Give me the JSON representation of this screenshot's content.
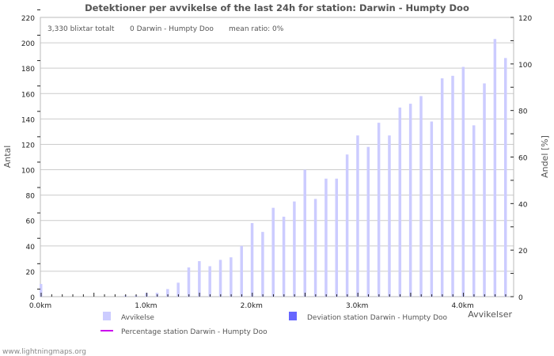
{
  "chart_data": {
    "type": "bar",
    "title": "Detektioner per avvikelse of the last 24h for station: Darwin - Humpty Doo",
    "stats": {
      "total": "3,330 blixtar totalt",
      "station": "0 Darwin - Humpty Doo",
      "mean_ratio": "mean ratio: 0%"
    },
    "xlabel": "Avvikelser",
    "ylabel": "Antal",
    "y2label": "Andel [%]",
    "ylim": [
      0,
      220
    ],
    "y2lim": [
      0,
      120
    ],
    "xlim": [
      0,
      4.45
    ],
    "y_ticks": [
      "0",
      "20",
      "40",
      "60",
      "80",
      "100",
      "120",
      "140",
      "160",
      "180",
      "200",
      "220"
    ],
    "y2_ticks": [
      "0",
      "20",
      "40",
      "60",
      "80",
      "100",
      "120"
    ],
    "x_ticks": [
      "0.0km",
      "1.0km",
      "2.0km",
      "3.0km",
      "4.0km"
    ],
    "x": [
      0.0,
      0.1,
      0.2,
      0.3,
      0.4,
      0.5,
      0.6,
      0.7,
      0.8,
      0.9,
      1.0,
      1.1,
      1.2,
      1.3,
      1.4,
      1.5,
      1.6,
      1.7,
      1.8,
      1.9,
      2.0,
      2.1,
      2.2,
      2.3,
      2.4,
      2.5,
      2.6,
      2.7,
      2.8,
      2.9,
      3.0,
      3.1,
      3.2,
      3.3,
      3.4,
      3.5,
      3.6,
      3.7,
      3.8,
      3.9,
      4.0,
      4.1,
      4.2,
      4.3,
      4.4
    ],
    "series": [
      {
        "name": "Avvikelse",
        "color": "#ccccff",
        "values": [
          10,
          0,
          0,
          0,
          0,
          0,
          0,
          0,
          1,
          1,
          3,
          3,
          6,
          11,
          23,
          28,
          24,
          29,
          31,
          40,
          58,
          51,
          70,
          63,
          75,
          100,
          77,
          93,
          93,
          112,
          127,
          118,
          137,
          127,
          149,
          152,
          158,
          138,
          172,
          174,
          181,
          135,
          168,
          203,
          188
        ]
      },
      {
        "name": "Deviation station Darwin - Humpty Doo",
        "color": "#6666ff",
        "values": [
          0,
          0,
          0,
          0,
          0,
          0,
          0,
          0,
          0,
          0,
          0,
          0,
          0,
          0,
          0,
          0,
          0,
          0,
          0,
          0,
          0,
          0,
          0,
          0,
          0,
          0,
          0,
          0,
          0,
          0,
          0,
          0,
          0,
          0,
          0,
          0,
          0,
          0,
          0,
          0,
          0,
          0,
          0,
          0,
          0
        ]
      },
      {
        "name": "Percentage station Darwin - Humpty Doo",
        "color": "#cc00ee",
        "type": "line",
        "values": [
          0,
          0,
          0,
          0,
          0,
          0,
          0,
          0,
          0,
          0,
          0,
          0,
          0,
          0,
          0,
          0,
          0,
          0,
          0,
          0,
          0,
          0,
          0,
          0,
          0,
          0,
          0,
          0,
          0,
          0,
          0,
          0,
          0,
          0,
          0,
          0,
          0,
          0,
          0,
          0,
          0,
          0,
          0,
          0,
          0
        ]
      }
    ],
    "grid": true,
    "legend": "bottom"
  },
  "footer": "www.lightningmaps.org"
}
